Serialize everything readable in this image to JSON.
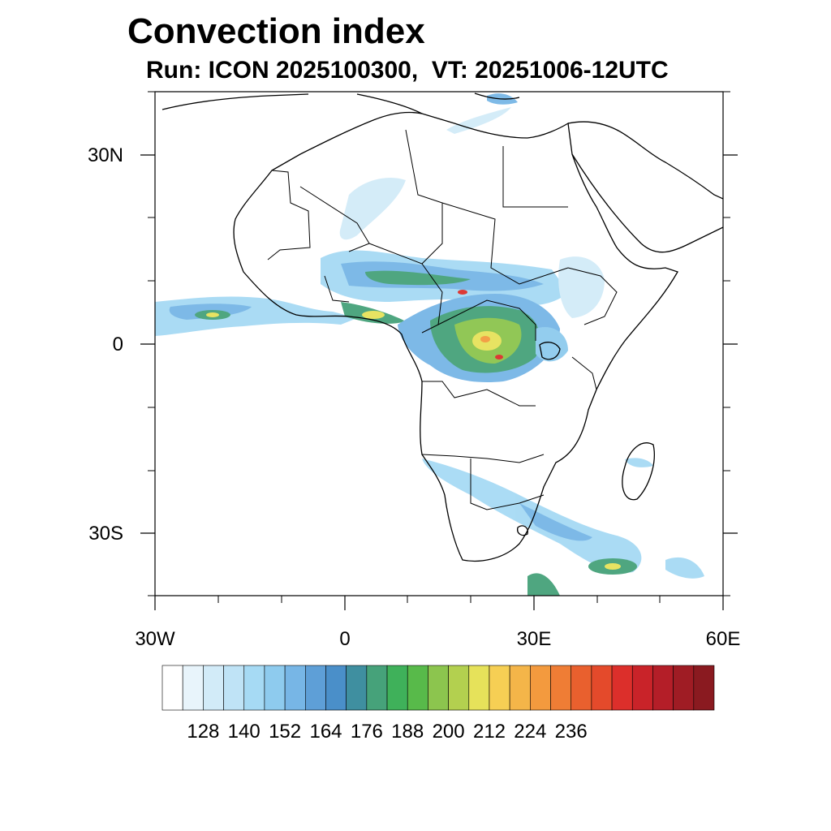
{
  "title": "Convection index",
  "subtitle": "Run: ICON 2025100300,  VT: 20251006-12UTC",
  "map": {
    "projection": "lat-lon",
    "lon_range": [
      -30,
      60
    ],
    "lat_range": [
      -40,
      40
    ],
    "x_ticks": [
      "30W",
      "0",
      "30E",
      "60E"
    ],
    "y_ticks": [
      "30N",
      "0",
      "30S"
    ]
  },
  "colorbar": {
    "labels": [
      "128",
      "140",
      "152",
      "164",
      "176",
      "188",
      "200",
      "212",
      "224",
      "236"
    ],
    "colors": [
      "#ffffff",
      "#e8f4fb",
      "#d2ebf8",
      "#bfe3f6",
      "#a6daf4",
      "#8ecbee",
      "#77b6e6",
      "#5e9fd7",
      "#4a8fc9",
      "#3f8fa0",
      "#46a27a",
      "#3fb15a",
      "#58ba4a",
      "#8cc54e",
      "#b3d04f",
      "#e6e25a",
      "#f6cf54",
      "#f4b549",
      "#f39a3e",
      "#ef7d35",
      "#e9602e",
      "#e44a2b",
      "#dc2f2b",
      "#c92329",
      "#b41e28",
      "#9f1c24",
      "#8a1a20"
    ]
  },
  "palette": {
    "land_edge": "#000000",
    "low": "#a6daf4",
    "mid": "#4a8fc9",
    "green": "#46a27a",
    "yellow": "#e6e25a",
    "orange": "#f39a3e",
    "red": "#dc2f2b"
  }
}
